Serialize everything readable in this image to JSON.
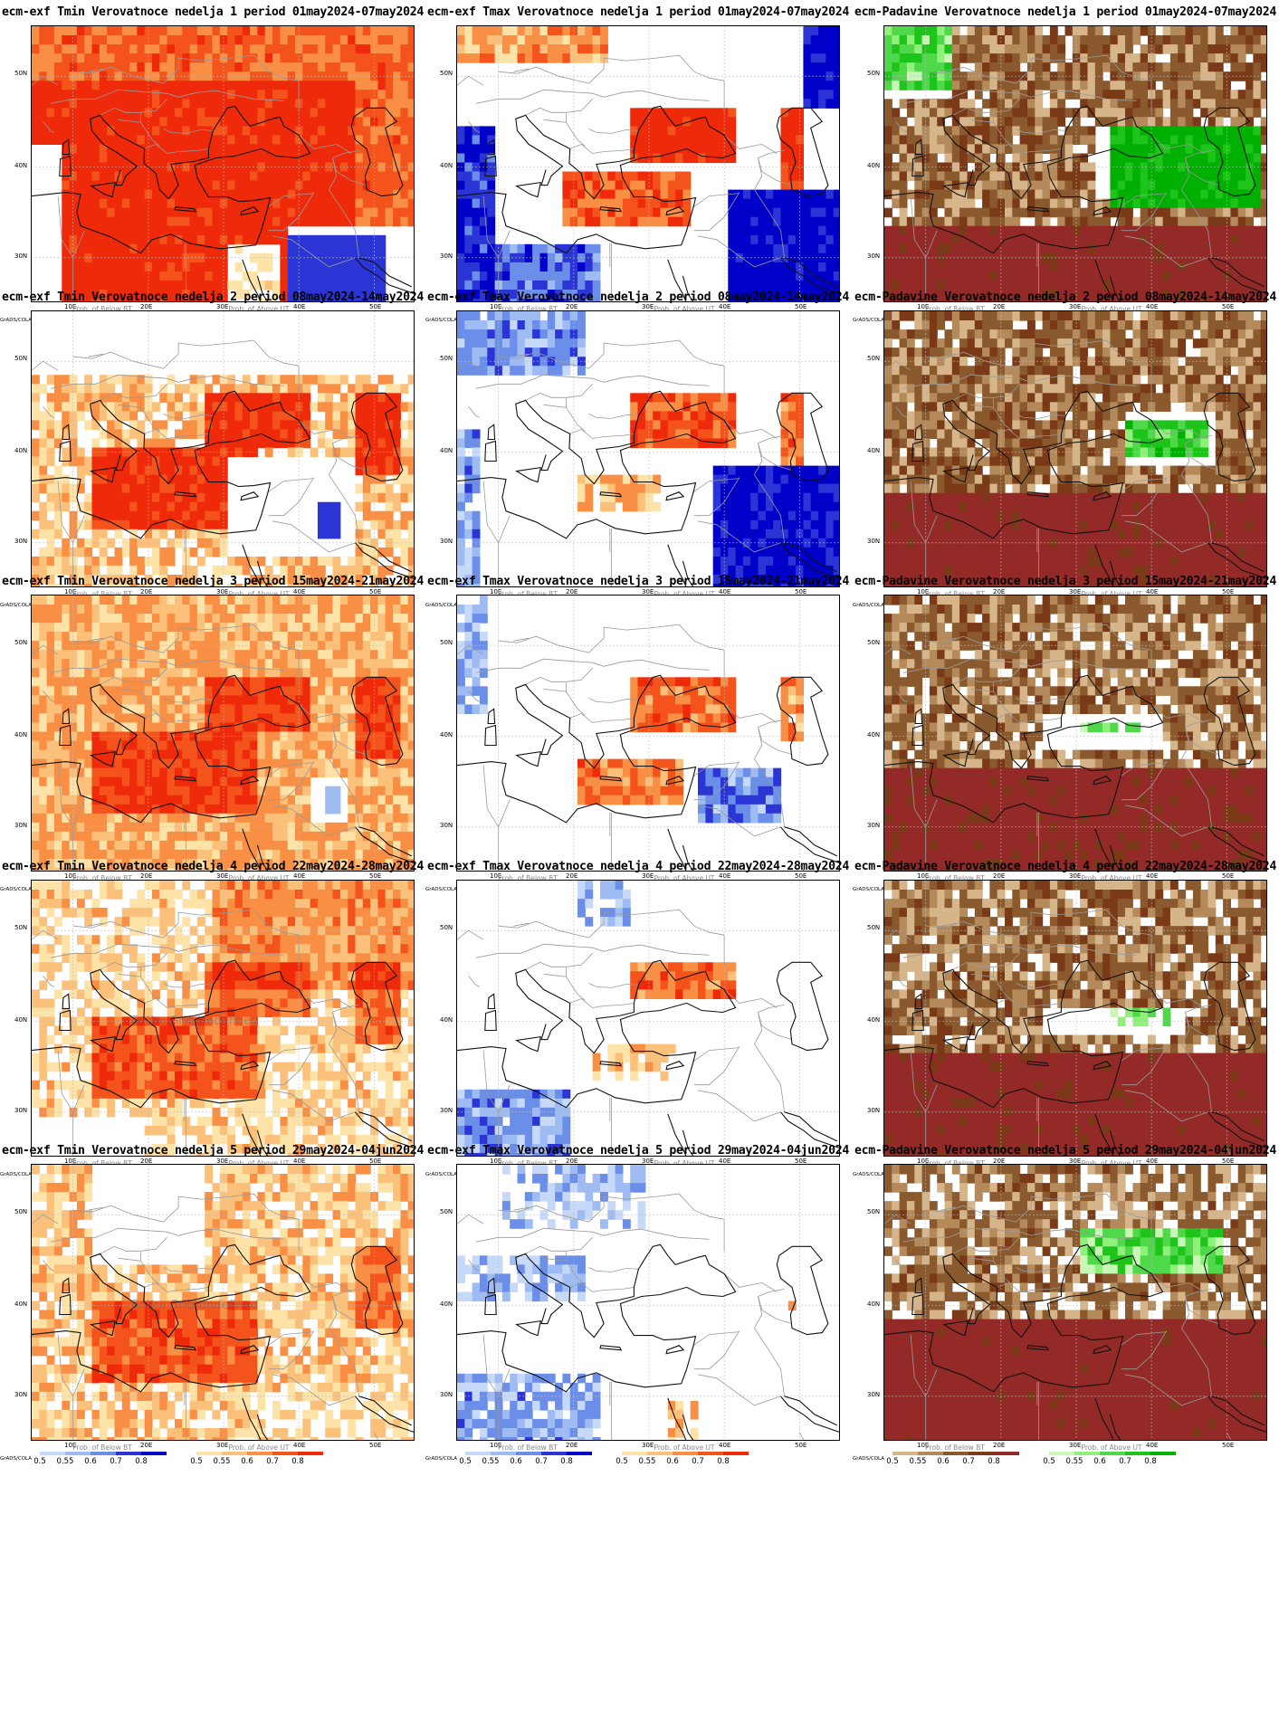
{
  "palettes": {
    "tmin_below": [
      "#c7d9f9",
      "#9fbcf2",
      "#6b8ee8",
      "#2b35d6",
      "#0000c8"
    ],
    "tmin_above": [
      "#fde3a7",
      "#fbc07a",
      "#f88f45",
      "#f4531c",
      "#ee2a0a"
    ],
    "tmax_below": [
      "#c7d9f9",
      "#9fbcf2",
      "#6b8ee8",
      "#2b35d6",
      "#0000c8"
    ],
    "tmax_above": [
      "#fde3a7",
      "#fbc07a",
      "#f88f45",
      "#f4531c",
      "#ee2a0a"
    ],
    "pad_below": [
      "#d6b58a",
      "#b48a5a",
      "#8a5a2e",
      "#7a3a18",
      "#942a28"
    ],
    "pad_above": [
      "#c9f7b8",
      "#8ff07a",
      "#4fd84a",
      "#1ec41a",
      "#00b000"
    ]
  },
  "common": {
    "grads_label": "GrADS/COLA",
    "legend_ticks": [
      "0.5",
      "0.55",
      "0.6",
      "0.7",
      "0.8"
    ],
    "y_ticks": [
      "50N",
      "40N",
      "30N"
    ],
    "x_ticks": [
      "10E",
      "20E",
      "30E",
      "40E",
      "50E"
    ]
  },
  "rows": [
    {
      "row": 1,
      "panels": [
        {
          "variable": "tmin",
          "title": "ecm-exf Tmin Verovatnoce nedelja 1 period 01may2024-07may2024",
          "legend_below_title": "Prob. of Below BT",
          "legend_above_title": "Prob. of Above UT",
          "above_level": 5,
          "below_level": 4,
          "watermark": ""
        },
        {
          "variable": "tmax",
          "title": "ecm-exf Tmax Verovatnoce nedelja 1 period 01may2024-07may2024",
          "legend_below_title": "Prob. of Below BT",
          "legend_above_title": "Prob. of Above UT",
          "above_level": 4,
          "below_level": 5,
          "watermark": ""
        },
        {
          "variable": "pad",
          "title": "ecm-Padavine Verovatnoce nedelja 1 period 01may2024-07may2024",
          "legend_below_title": "Prob. of Below BT",
          "legend_above_title": "Prob. of Above UT",
          "above_level": 5,
          "below_level": 4,
          "watermark": ""
        }
      ]
    },
    {
      "row": 2,
      "panels": [
        {
          "variable": "tmin",
          "title": "ecm-exf Tmin Verovatnoce nedelja 2 period 08may2024-14may2024",
          "legend_below_title": "Prob. of Below BT",
          "legend_above_title": "Prob. of Above UT",
          "above_level": 4,
          "below_level": 3,
          "watermark": ""
        },
        {
          "variable": "tmax",
          "title": "ecm-exf Tmax Verovatnoce nedelja 2 period 08may2024-14may2024",
          "legend_below_title": "Prob. of Below BT",
          "legend_above_title": "Prob. of Above UT",
          "above_level": 3,
          "below_level": 5,
          "watermark": ""
        },
        {
          "variable": "pad",
          "title": "ecm-Padavine Verovatnoce nedelja 2 period 08may2024-14may2024",
          "legend_below_title": "Prob. of Below BT",
          "legend_above_title": "Prob. of Above UT",
          "above_level": 3,
          "below_level": 5,
          "watermark": ""
        }
      ]
    },
    {
      "row": 3,
      "panels": [
        {
          "variable": "tmin",
          "title": "ecm-exf Tmin Verovatnoce nedelja 3 period 15may2024-21may2024",
          "legend_below_title": "Prob. of Below BT",
          "legend_above_title": "Prob. of Above UT",
          "above_level": 4,
          "below_level": 2,
          "watermark": ""
        },
        {
          "variable": "tmax",
          "title": "ecm-exf Tmax Verovatnoce nedelja 3 period 15may2024-21may2024",
          "legend_below_title": "Prob. of Below BT",
          "legend_above_title": "Prob. of Above UT",
          "above_level": 3,
          "below_level": 3,
          "watermark": ""
        },
        {
          "variable": "pad",
          "title": "ecm-Padavine Verovatnoce nedelja 3 period 15may2024-21may2024",
          "legend_below_title": "Prob. of Below BT",
          "legend_above_title": "Prob. of Above UT",
          "above_level": 2,
          "below_level": 5,
          "watermark": ""
        }
      ]
    },
    {
      "row": 4,
      "panels": [
        {
          "variable": "tmin",
          "title": "ecm-exf Tmin Verovatnoce nedelja 4 period 22may2024-28may2024",
          "legend_below_title": "Prob. of Below BT",
          "legend_above_title": "Prob. of Above UT",
          "above_level": 3,
          "below_level": 1,
          "watermark": "Entire Grid Undefined"
        },
        {
          "variable": "tmax",
          "title": "ecm-exf Tmax Verovatnoce nedelja 4 period 22may2024-28may2024",
          "legend_below_title": "Prob. of Below BT",
          "legend_above_title": "Prob. of Above UT",
          "above_level": 2,
          "below_level": 2,
          "watermark": ""
        },
        {
          "variable": "pad",
          "title": "ecm-Padavine Verovatnoce nedelja 4 period 22may2024-28may2024",
          "legend_below_title": "Prob. of Below BT",
          "legend_above_title": "Prob. of Above UT",
          "above_level": 1,
          "below_level": 5,
          "watermark": ""
        }
      ]
    },
    {
      "row": 5,
      "panels": [
        {
          "variable": "tmin",
          "title": "ecm-exf Tmin Verovatnoce nedelja 5 period 29may2024-04jun2024",
          "legend_below_title": "Prob. of Below BT",
          "legend_above_title": "Prob. of Above UT",
          "above_level": 3,
          "below_level": 1,
          "watermark": "Entire Grid Undefined"
        },
        {
          "variable": "tmax",
          "title": "ecm-exf Tmax Verovatnoce nedelja 5 period 29may2024-04jun2024",
          "legend_below_title": "Prob. of Below BT",
          "legend_above_title": "Prob. of Above UT",
          "above_level": 1,
          "below_level": 2,
          "watermark": ""
        },
        {
          "variable": "pad",
          "title": "ecm-Padavine Verovatnoce nedelja 5 period 29may2024-04jun2024",
          "legend_below_title": "Prob. of Below BT",
          "legend_above_title": "Prob. of Above UT",
          "above_level": 2,
          "below_level": 5,
          "watermark": ""
        }
      ]
    }
  ]
}
